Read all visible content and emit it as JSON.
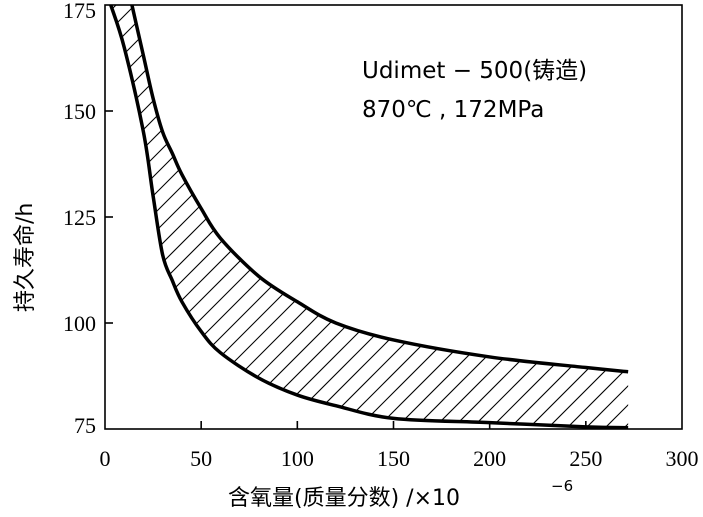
{
  "chart_data": {
    "type": "area",
    "title": "",
    "xlabel": "含氧量(质量分数) /×10",
    "xlabel_exponent": "−6",
    "ylabel": "持久寿命/h",
    "xlim": [
      0,
      300
    ],
    "ylim": [
      75,
      175
    ],
    "xticks": [
      "0",
      "50",
      "100",
      "150",
      "200",
      "250",
      "300"
    ],
    "yticks": [
      "75",
      "100",
      "125",
      "150",
      "175"
    ],
    "grid": false,
    "annotations": [
      "Udimet − 500(铸造)",
      "870℃ , 172MPa"
    ],
    "series": [
      {
        "role": "upper-bound",
        "x": [
          14,
          20,
          25,
          30,
          35,
          40,
          50,
          60,
          80,
          100,
          120,
          150,
          200,
          250,
          272
        ],
        "y": [
          175,
          163,
          153,
          145,
          140,
          135,
          127,
          120,
          111,
          105,
          100,
          96,
          92,
          89.5,
          88.5
        ]
      },
      {
        "role": "lower-bound",
        "x": [
          3,
          10,
          20,
          25,
          30,
          35,
          40,
          50,
          60,
          80,
          100,
          120,
          150,
          200,
          250,
          272
        ],
        "y": [
          175,
          165,
          145,
          130,
          116,
          110,
          105,
          98,
          93,
          87,
          83,
          80.5,
          77.5,
          76.5,
          75.5,
          75.3
        ]
      }
    ],
    "fill": "hatched band between bounds",
    "line_color": "#000000"
  }
}
